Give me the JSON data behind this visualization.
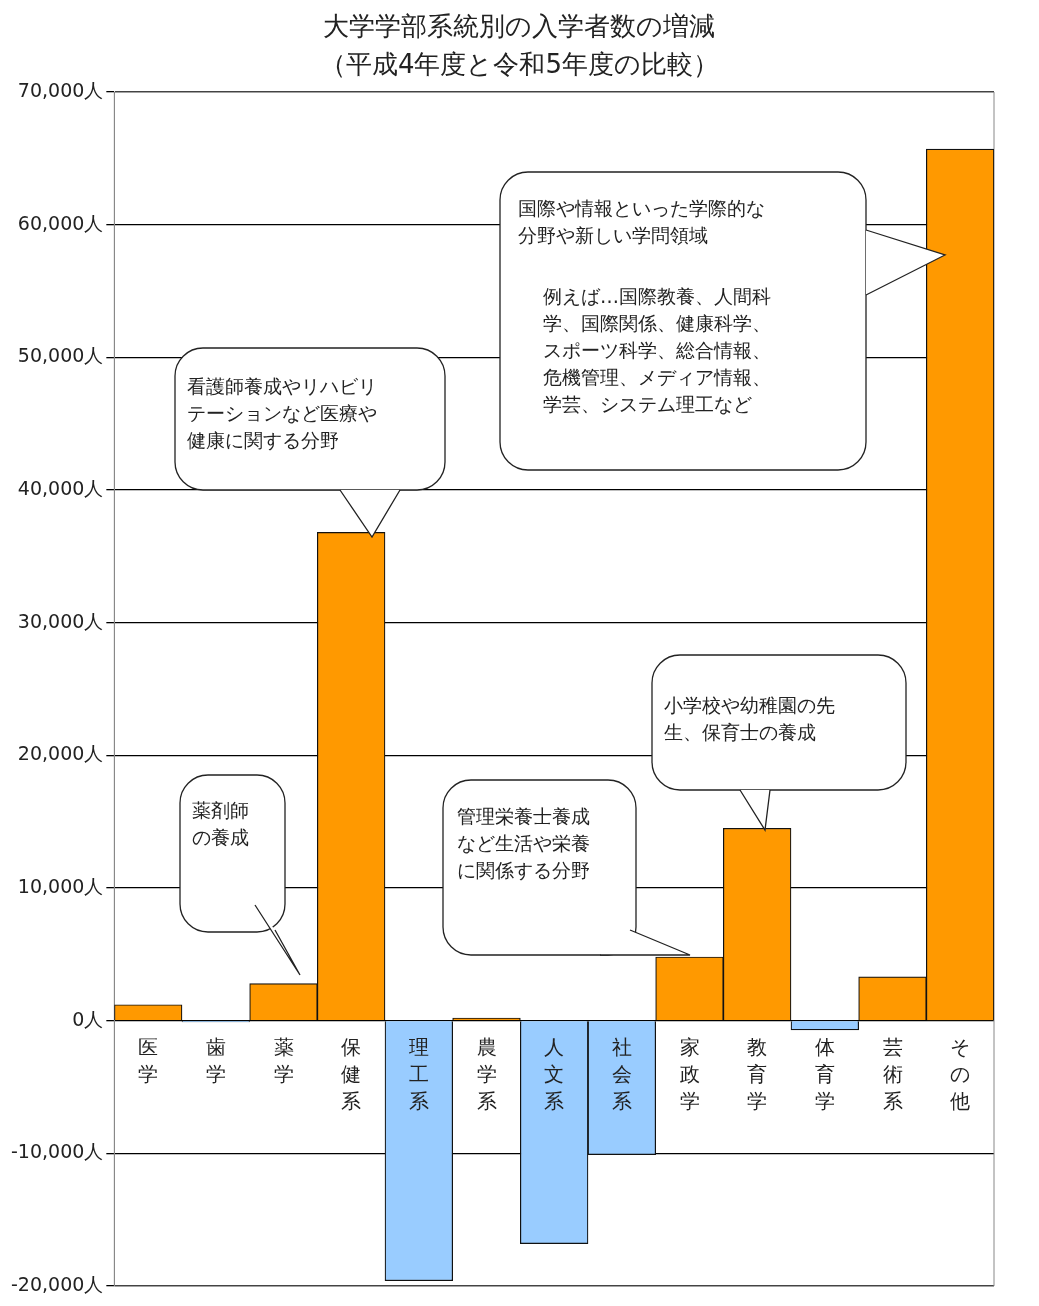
{
  "chart_data": {
    "type": "bar",
    "title": "大学学部系統別の入学者数の増減（平成4年度と令和5年度の比較）",
    "categories": [
      "医学",
      "歯学",
      "薬学",
      "保健系",
      "理工系",
      "農学系",
      "人文系",
      "社会系",
      "家政学",
      "教育学",
      "体育学",
      "芸術系",
      "その他"
    ],
    "values": [
      1200,
      -100,
      2800,
      36800,
      -19600,
      200,
      -16800,
      -10100,
      4800,
      14500,
      -700,
      3300,
      65700
    ],
    "colors": [
      "#ff9900",
      "#99ccff",
      "#ff9900",
      "#ff9900",
      "#99ccff",
      "#ff9900",
      "#99ccff",
      "#99ccff",
      "#ff9900",
      "#ff9900",
      "#99ccff",
      "#ff9900",
      "#ff9900"
    ],
    "ylim": [
      -20000,
      70000
    ],
    "yticks": [
      {
        "value": -20000,
        "label": "-20,000人"
      },
      {
        "value": -10000,
        "label": "-10,000人"
      },
      {
        "value": 0,
        "label": "0人"
      },
      {
        "value": 10000,
        "label": "10,000人"
      },
      {
        "value": 20000,
        "label": "20,000人"
      },
      {
        "value": 30000,
        "label": "30,000人"
      },
      {
        "value": 40000,
        "label": "40,000人"
      },
      {
        "value": 50000,
        "label": "50,000人"
      },
      {
        "value": 60000,
        "label": "60,000人"
      },
      {
        "value": 70000,
        "label": "70,000人"
      }
    ],
    "grid": "y",
    "annotations": [
      "薬剤師の養成",
      "看護師養成やリハビリテーションなど医療や健康に関する分野",
      "管理栄養士養成など生活や栄養に関係する分野",
      "小学校や幼稚園の先生、保育士の養成",
      "国際や情報といった学際的な分野や新しい学問領域",
      "例えば…国際教養、人間科学、国際関係、健康科学、スポーツ科学、総合情報、危機管理、メディア情報、学芸、システム理工など"
    ]
  }
}
